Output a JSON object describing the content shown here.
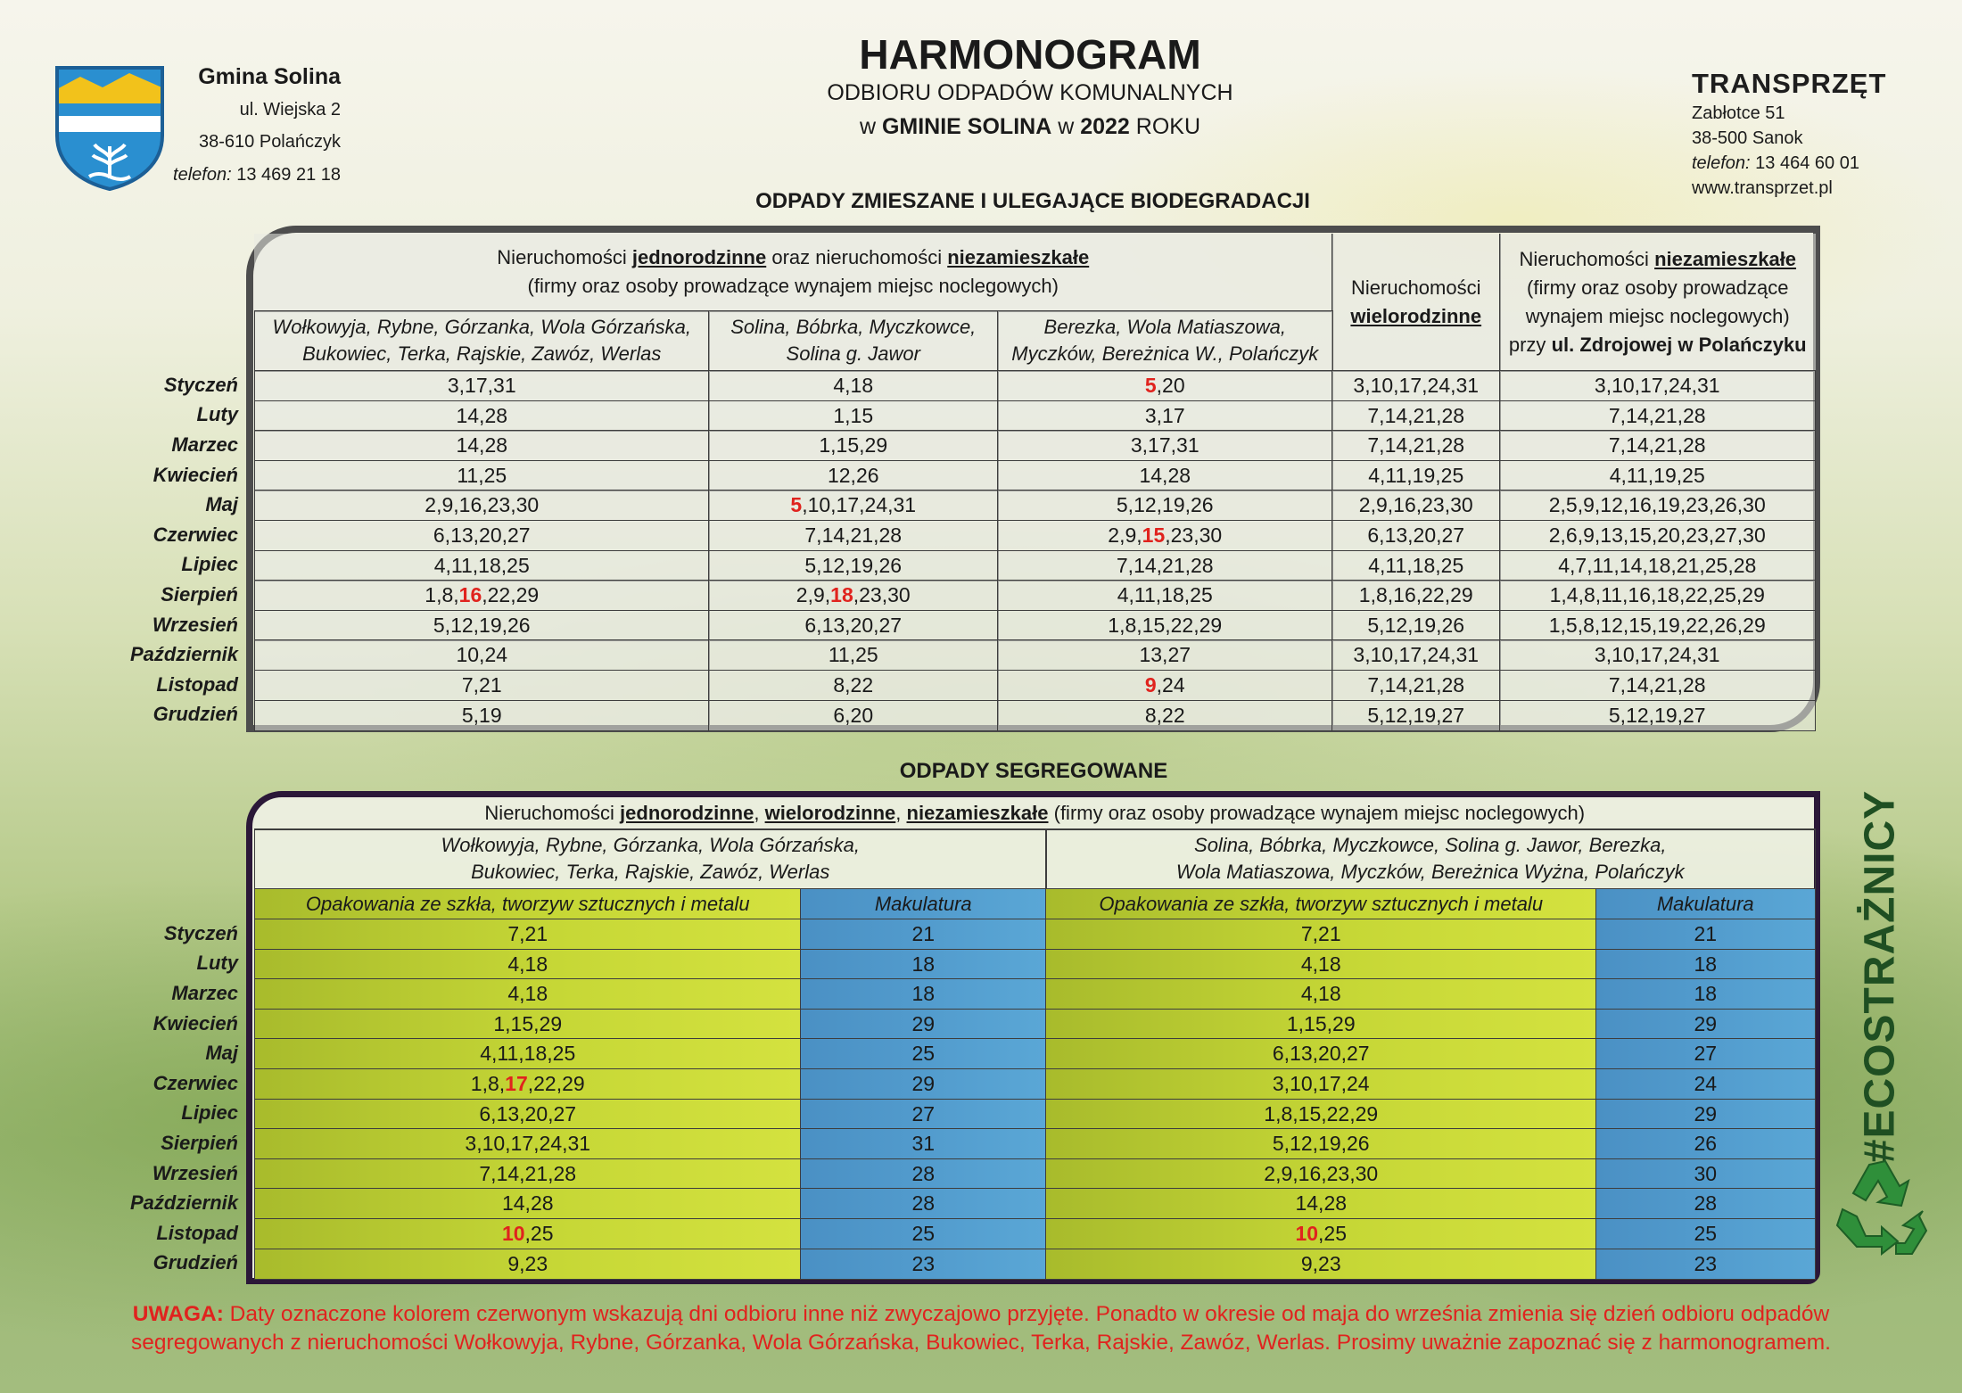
{
  "header": {
    "municipality": {
      "name": "Gmina Solina",
      "address": [
        "ul. Wiejska 2",
        "38-610 Polańczyk"
      ],
      "phone": [
        {
          "text": "telefon:",
          "style": "it"
        },
        " 13 469 21 18"
      ]
    },
    "title": "HARMONOGRAM",
    "subtitle": "ODBIORU ODPADÓW KOMUNALNYCH",
    "subtitle2": [
      "w ",
      {
        "text": "GMINIE SOLINA",
        "style": "bold"
      },
      " w ",
      {
        "text": "2022",
        "style": "bold"
      },
      " ROKU"
    ],
    "company": {
      "name": "TRANSPRZĘT",
      "address": [
        "Zabłotce 51",
        "38-500 Sanok"
      ],
      "phone": [
        {
          "text": "telefon:",
          "style": "it"
        },
        " 13 464 60 01"
      ],
      "website": "www.transprzet.pl"
    }
  },
  "mixed": {
    "title": "ODPADY ZMIESZANE I ULEGAJĄCE BIODEGRADACJI",
    "group_header": {
      "lines": [
        [
          "Nieruchomości ",
          {
            "text": "jednorodzinne",
            "style": "em"
          },
          " oraz nieruchomości ",
          {
            "text": "niezamieszkałe",
            "style": "em"
          }
        ],
        "(firmy oraz osoby prowadzące wynajem miejsc noclegowych)"
      ]
    },
    "multi_header": {
      "lines": [
        "Nieruchomości",
        [
          {
            "text": "wielorodzinne",
            "style": "em"
          }
        ]
      ]
    },
    "nonres_header": {
      "lines": [
        [
          "Nieruchomości ",
          {
            "text": "niezamieszkałe",
            "style": "em"
          }
        ],
        "(firmy oraz osoby prowadzące",
        "wynajem miejsc noclegowych)",
        [
          "przy ",
          {
            "text": "ul. Zdrojowej w Polańczyku",
            "style": "bold"
          }
        ]
      ]
    },
    "areas": [
      {
        "lines": [
          "Wołkowyja, Rybne, Górzanka, Wola Górzańska,",
          "Bukowiec, Terka, Rajskie, Zawóz, Werlas"
        ]
      },
      {
        "lines": [
          "Solina, Bóbrka, Myczkowce,",
          "Solina g. Jawor"
        ]
      },
      {
        "lines": [
          "Berezka, Wola Matiaszowa,",
          "Myczków, Bereżnica W., Polańczyk"
        ]
      }
    ],
    "rows": [
      [
        "Styczeń",
        "3,17,31",
        "4,18",
        [
          {
            "text": "5",
            "style": "red"
          },
          ",20"
        ],
        "3,10,17,24,31",
        "3,10,17,24,31"
      ],
      [
        "Luty",
        "14,28",
        "1,15",
        "3,17",
        "7,14,21,28",
        "7,14,21,28"
      ],
      [
        "Marzec",
        "14,28",
        "1,15,29",
        "3,17,31",
        "7,14,21,28",
        "7,14,21,28"
      ],
      [
        "Kwiecień",
        "11,25",
        "12,26",
        "14,28",
        "4,11,19,25",
        "4,11,19,25"
      ],
      [
        "Maj",
        "2,9,16,23,30",
        [
          {
            "text": "5",
            "style": "red"
          },
          ",10,17,24,31"
        ],
        "5,12,19,26",
        "2,9,16,23,30",
        "2,5,9,12,16,19,23,26,30"
      ],
      [
        "Czerwiec",
        "6,13,20,27",
        "7,14,21,28",
        [
          "2,9,",
          {
            "text": "15",
            "style": "red"
          },
          ",23,30"
        ],
        "6,13,20,27",
        "2,6,9,13,15,20,23,27,30"
      ],
      [
        "Lipiec",
        "4,11,18,25",
        "5,12,19,26",
        "7,14,21,28",
        "4,11,18,25",
        "4,7,11,14,18,21,25,28"
      ],
      [
        "Sierpień",
        [
          "1,8,",
          {
            "text": "16",
            "style": "red"
          },
          ",22,29"
        ],
        [
          "2,9,",
          {
            "text": "18",
            "style": "red"
          },
          ",23,30"
        ],
        "4,11,18,25",
        "1,8,16,22,29",
        "1,4,8,11,16,18,22,25,29"
      ],
      [
        "Wrzesień",
        "5,12,19,26",
        "6,13,20,27",
        "1,8,15,22,29",
        "5,12,19,26",
        "1,5,8,12,15,19,22,26,29"
      ],
      [
        "Październik",
        "10,24",
        "11,25",
        "13,27",
        "3,10,17,24,31",
        "3,10,17,24,31"
      ],
      [
        "Listopad",
        "7,21",
        "8,22",
        [
          {
            "text": "9",
            "style": "red"
          },
          ",24"
        ],
        "7,14,21,28",
        "7,14,21,28"
      ],
      [
        "Grudzień",
        "5,19",
        "6,20",
        "8,22",
        "5,12,19,27",
        "5,12,19,27"
      ]
    ]
  },
  "sorted": {
    "title": "ODPADY SEGREGOWANE",
    "group_header": [
      "Nieruchomości ",
      {
        "text": "jednorodzinne",
        "style": "em"
      },
      ", ",
      {
        "text": "wielorodzinne",
        "style": "em"
      },
      ", ",
      {
        "text": "niezamieszkałe",
        "style": "em"
      },
      " (firmy oraz osoby prowadzące wynajem miejsc noclegowych)"
    ],
    "areas": [
      {
        "lines": [
          "Wołkowyja, Rybne, Górzanka, Wola Górzańska,",
          "Bukowiec, Terka, Rajskie, Zawóz, Werlas"
        ]
      },
      {
        "lines": [
          "Solina, Bóbrka, Myczkowce, Solina g. Jawor, Berezka,",
          "Wola Matiaszowa, Myczków, Bereżnica Wyżna, Polańczyk"
        ]
      }
    ],
    "types": [
      "Opakowania ze szkła, tworzyw sztucznych i metalu",
      "Makulatura",
      "Opakowania ze szkła, tworzyw sztucznych i metalu",
      "Makulatura"
    ],
    "rows": [
      [
        "Styczeń",
        "7,21",
        "21",
        "7,21",
        "21"
      ],
      [
        "Luty",
        "4,18",
        "18",
        "4,18",
        "18"
      ],
      [
        "Marzec",
        "4,18",
        "18",
        "4,18",
        "18"
      ],
      [
        "Kwiecień",
        "1,15,29",
        "29",
        "1,15,29",
        "29"
      ],
      [
        "Maj",
        "4,11,18,25",
        "25",
        "6,13,20,27",
        "27"
      ],
      [
        "Czerwiec",
        [
          "1,8,",
          {
            "text": "17",
            "style": "red"
          },
          ",22,29"
        ],
        "29",
        "3,10,17,24",
        "24"
      ],
      [
        "Lipiec",
        "6,13,20,27",
        "27",
        "1,8,15,22,29",
        "29"
      ],
      [
        "Sierpień",
        "3,10,17,24,31",
        "31",
        "5,12,19,26",
        "26"
      ],
      [
        "Wrzesień",
        "7,14,21,28",
        "28",
        "2,9,16,23,30",
        "30"
      ],
      [
        "Październik",
        "14,28",
        "28",
        "14,28",
        "28"
      ],
      [
        "Listopad",
        [
          {
            "text": "10",
            "style": "red"
          },
          ",25"
        ],
        "25",
        [
          {
            "text": "10",
            "style": "red"
          },
          ",25"
        ],
        "25"
      ],
      [
        "Grudzień",
        "9,23",
        "23",
        "9,23",
        "23"
      ]
    ]
  },
  "note": {
    "lines": [
      [
        {
          "text": "UWAGA:",
          "style": "bold"
        },
        " Daty oznaczone kolorem czerwonym wskazują dni odbioru inne niż zwyczajowo przyjęte. Ponadto w okresie od maja do września zmienia się dzień odbioru odpadów"
      ],
      "segregowanych z nieruchomości Wołkowyja, Rybne, Górzanka, Wola Górzańska, Bukowiec, Terka, Rajskie, Zawóz, Werlas. Prosimy uważnie zapoznać się z harmonogramem."
    ]
  },
  "badge": "#ECOSTRAŻNICY"
}
